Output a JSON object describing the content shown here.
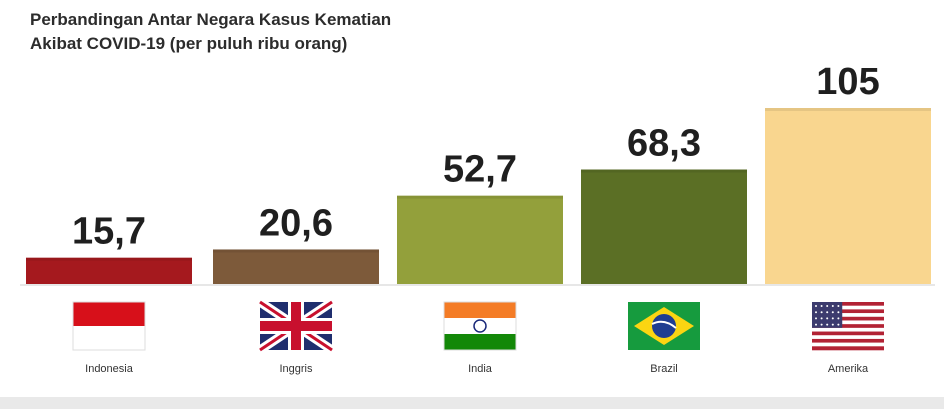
{
  "chart_data": {
    "type": "bar",
    "title_lines": [
      "Perbandingan Antar Negara Kasus Kematian",
      "Akibat COVID-19 (per puluh ribu orang)"
    ],
    "categories": [
      "Indonesia",
      "Inggris",
      "India",
      "Brazil",
      "Amerika"
    ],
    "values": [
      15.7,
      20.6,
      52.7,
      68.3,
      105
    ],
    "value_labels": [
      "15,7",
      "20,6",
      "52,7",
      "68,3",
      "105"
    ],
    "colors": [
      "#a5191e",
      "#7d5a3a",
      "#93a03b",
      "#5b6f25",
      "#f9d68f"
    ],
    "flags": [
      "flag-indonesia-icon",
      "flag-uk-icon",
      "flag-india-icon",
      "flag-brazil-icon",
      "flag-usa-icon"
    ],
    "ylim": [
      0,
      105
    ],
    "grid": false,
    "legend": "none"
  }
}
